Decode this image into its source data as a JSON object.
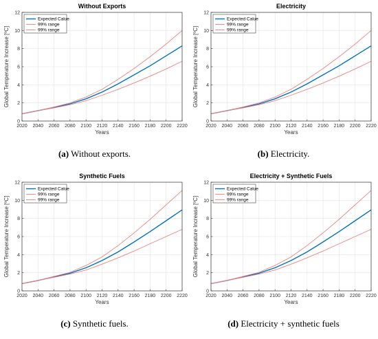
{
  "chart_data": [
    {
      "type": "line",
      "title": "Without Exports",
      "xlabel": "Years",
      "ylabel": "Global Temperature Increase [ºC]",
      "xlim": [
        2020,
        2220
      ],
      "ylim": [
        0,
        12
      ],
      "xticks": [
        2020,
        2040,
        2060,
        2080,
        2100,
        2120,
        2140,
        2160,
        2180,
        2200,
        2220
      ],
      "yticks": [
        0,
        2,
        4,
        6,
        8,
        10,
        12
      ],
      "grid": true,
      "legend_position": "top-left",
      "x": [
        2020,
        2040,
        2060,
        2080,
        2100,
        2120,
        2140,
        2160,
        2180,
        2200,
        2220
      ],
      "series": [
        {
          "name": "Expected Calue",
          "color": "#0072bd",
          "values": [
            0.8,
            1.15,
            1.5,
            1.9,
            2.45,
            3.2,
            4.1,
            5.1,
            6.1,
            7.2,
            8.3
          ]
        },
        {
          "name": "99% range",
          "color": "#f08080",
          "values": [
            0.8,
            1.15,
            1.55,
            2.0,
            2.65,
            3.5,
            4.6,
            5.8,
            7.1,
            8.5,
            10.0
          ]
        },
        {
          "name": "99% range",
          "color": "#f08080",
          "values": [
            0.8,
            1.15,
            1.45,
            1.8,
            2.25,
            2.85,
            3.5,
            4.2,
            4.95,
            5.75,
            6.6
          ]
        }
      ],
      "caption_label": "(a)",
      "caption_text": "Without exports."
    },
    {
      "type": "line",
      "title": "Electricity",
      "xlabel": "Years",
      "ylabel": "Global Temperature Increase [ºC]",
      "xlim": [
        2020,
        2220
      ],
      "ylim": [
        0,
        12
      ],
      "xticks": [
        2020,
        2040,
        2060,
        2080,
        2100,
        2120,
        2140,
        2160,
        2180,
        2200,
        2220
      ],
      "yticks": [
        0,
        2,
        4,
        6,
        8,
        10,
        12
      ],
      "grid": true,
      "legend_position": "top-left",
      "x": [
        2020,
        2040,
        2060,
        2080,
        2100,
        2120,
        2140,
        2160,
        2180,
        2200,
        2220
      ],
      "series": [
        {
          "name": "Expected Calue",
          "color": "#0072bd",
          "values": [
            0.8,
            1.15,
            1.5,
            1.9,
            2.45,
            3.2,
            4.1,
            5.1,
            6.1,
            7.2,
            8.3
          ]
        },
        {
          "name": "99% range",
          "color": "#f08080",
          "values": [
            0.8,
            1.15,
            1.55,
            2.0,
            2.65,
            3.5,
            4.6,
            5.8,
            7.1,
            8.5,
            10.0
          ]
        },
        {
          "name": "99% range",
          "color": "#f08080",
          "values": [
            0.8,
            1.15,
            1.45,
            1.8,
            2.25,
            2.85,
            3.5,
            4.2,
            4.95,
            5.75,
            6.6
          ]
        }
      ],
      "caption_label": "(b)",
      "caption_text": "Electricity."
    },
    {
      "type": "line",
      "title": "Synthetic Fuels",
      "xlabel": "Years",
      "ylabel": "Global Temperature Increase [ºC]",
      "xlim": [
        2020,
        2220
      ],
      "ylim": [
        0,
        12
      ],
      "xticks": [
        2020,
        2040,
        2060,
        2080,
        2100,
        2120,
        2140,
        2160,
        2180,
        2200,
        2220
      ],
      "yticks": [
        0,
        2,
        4,
        6,
        8,
        10,
        12
      ],
      "grid": true,
      "legend_position": "top-left",
      "x": [
        2020,
        2040,
        2060,
        2080,
        2100,
        2120,
        2140,
        2160,
        2180,
        2200,
        2220
      ],
      "series": [
        {
          "name": "Expected Calue",
          "color": "#0072bd",
          "values": [
            0.8,
            1.15,
            1.55,
            1.95,
            2.55,
            3.35,
            4.3,
            5.4,
            6.55,
            7.75,
            8.95
          ]
        },
        {
          "name": "99% range",
          "color": "#f08080",
          "values": [
            0.8,
            1.15,
            1.6,
            2.05,
            2.8,
            3.75,
            5.0,
            6.4,
            7.9,
            9.5,
            11.1
          ]
        },
        {
          "name": "99% range",
          "color": "#f08080",
          "values": [
            0.8,
            1.15,
            1.5,
            1.85,
            2.3,
            2.95,
            3.65,
            4.4,
            5.2,
            6.0,
            6.8
          ]
        }
      ],
      "caption_label": "(c)",
      "caption_text": "Synthetic fuels."
    },
    {
      "type": "line",
      "title": "Electricity + Synthetic Fuels",
      "xlabel": "Years",
      "ylabel": "Global Temperature Increase [ºC]",
      "xlim": [
        2020,
        2220
      ],
      "ylim": [
        0,
        12
      ],
      "xticks": [
        2020,
        2040,
        2060,
        2080,
        2100,
        2120,
        2140,
        2160,
        2180,
        2200,
        2220
      ],
      "yticks": [
        0,
        2,
        4,
        6,
        8,
        10,
        12
      ],
      "grid": true,
      "legend_position": "top-left",
      "x": [
        2020,
        2040,
        2060,
        2080,
        2100,
        2120,
        2140,
        2160,
        2180,
        2200,
        2220
      ],
      "series": [
        {
          "name": "Expected Calue",
          "color": "#0072bd",
          "values": [
            0.8,
            1.15,
            1.55,
            1.95,
            2.55,
            3.35,
            4.3,
            5.4,
            6.55,
            7.75,
            8.95
          ]
        },
        {
          "name": "99% range",
          "color": "#f08080",
          "values": [
            0.8,
            1.15,
            1.6,
            2.05,
            2.8,
            3.75,
            5.0,
            6.4,
            7.9,
            9.5,
            11.1
          ]
        },
        {
          "name": "99% range",
          "color": "#f08080",
          "values": [
            0.8,
            1.15,
            1.5,
            1.85,
            2.3,
            2.95,
            3.65,
            4.4,
            5.2,
            6.0,
            6.8
          ]
        }
      ],
      "caption_label": "(d)",
      "caption_text": "Electricity + synthetic fuels"
    }
  ]
}
